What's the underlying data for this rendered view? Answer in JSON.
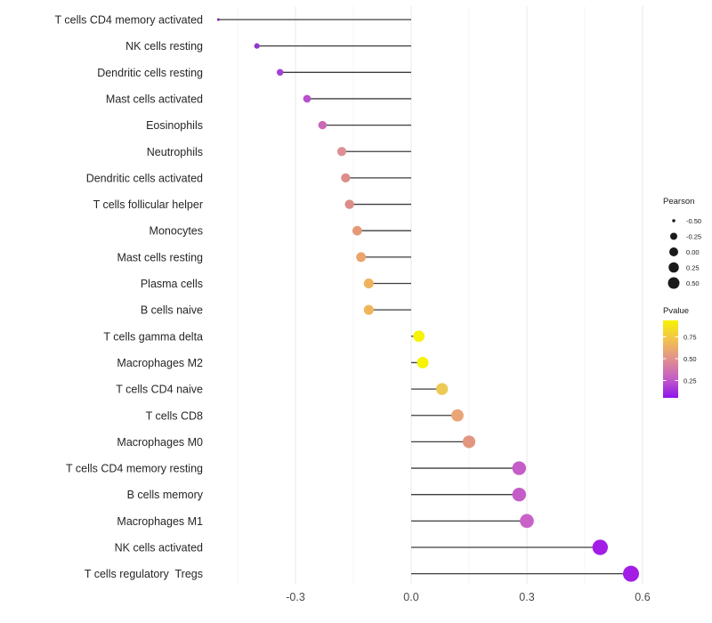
{
  "chart_data": {
    "type": "lollipop",
    "title": "",
    "xlabel": "",
    "ylabel": "",
    "xlim": [
      -0.55,
      0.65
    ],
    "x_ticks": [
      {
        "value": -0.3,
        "label": "-0.3"
      },
      {
        "value": 0.0,
        "label": "0.0"
      },
      {
        "value": 0.3,
        "label": "0.3"
      },
      {
        "value": 0.6,
        "label": "0.6"
      }
    ],
    "x_minor_ticks": [
      -0.45,
      -0.15,
      0.15,
      0.45
    ],
    "grid": "major-and-minor-vertical",
    "legend_position": "right",
    "rows": [
      {
        "label": "T cells CD4 memory activated",
        "pearson": -0.5,
        "dot_color": "#7b24ae"
      },
      {
        "label": "NK cells resting",
        "pearson": -0.4,
        "dot_color": "#9138ce"
      },
      {
        "label": "Dendritic cells resting",
        "pearson": -0.34,
        "dot_color": "#a442d2"
      },
      {
        "label": "Mast cells activated",
        "pearson": -0.27,
        "dot_color": "#b751ca"
      },
      {
        "label": "Eosinophils",
        "pearson": -0.23,
        "dot_color": "#cb69b4"
      },
      {
        "label": "Neutrophils",
        "pearson": -0.18,
        "dot_color": "#de8f94"
      },
      {
        "label": "Dendritic cells activated",
        "pearson": -0.17,
        "dot_color": "#dd8d8b"
      },
      {
        "label": "T cells follicular helper",
        "pearson": -0.16,
        "dot_color": "#de8c89"
      },
      {
        "label": "Monocytes",
        "pearson": -0.14,
        "dot_color": "#e59a77"
      },
      {
        "label": "Mast cells resting",
        "pearson": -0.13,
        "dot_color": "#eba46c"
      },
      {
        "label": "Plasma cells",
        "pearson": -0.11,
        "dot_color": "#f0b35d"
      },
      {
        "label": "B cells naive",
        "pearson": -0.11,
        "dot_color": "#f0b45b"
      },
      {
        "label": "T cells gamma delta",
        "pearson": 0.02,
        "dot_color": "#f6f303"
      },
      {
        "label": "Macrophages M2",
        "pearson": 0.03,
        "dot_color": "#f6f303"
      },
      {
        "label": "T cells CD4 naive",
        "pearson": 0.08,
        "dot_color": "#ecca55"
      },
      {
        "label": "T cells CD8",
        "pearson": 0.12,
        "dot_color": "#eaa576"
      },
      {
        "label": "Macrophages M0",
        "pearson": 0.15,
        "dot_color": "#e2967f"
      },
      {
        "label": "T cells CD4 memory resting",
        "pearson": 0.28,
        "dot_color": "#c45dc7"
      },
      {
        "label": "B cells memory",
        "pearson": 0.28,
        "dot_color": "#c45dc7"
      },
      {
        "label": "Macrophages M1",
        "pearson": 0.3,
        "dot_color": "#c961c9"
      },
      {
        "label": "NK cells activated",
        "pearson": 0.49,
        "dot_color": "#a21ee6"
      },
      {
        "label": "T cells regulatory  Tregs",
        "pearson": 0.57,
        "dot_color": "#a21ee6"
      }
    ],
    "size_legend": {
      "title": "Pearson",
      "entries": [
        {
          "label": "-0.50",
          "diameter": 3.5
        },
        {
          "label": "-0.25",
          "diameter": 8
        },
        {
          "label": "0.00",
          "diameter": 10
        },
        {
          "label": "0.25",
          "diameter": 11.5
        },
        {
          "label": "0.50",
          "diameter": 13
        }
      ]
    },
    "color_legend": {
      "title": "Pvalue",
      "tick_labels": [
        "0.75",
        "0.50",
        "0.25"
      ],
      "gradient_top_to_bottom": [
        "#f8f202",
        "#f2c24e",
        "#e2908f",
        "#c45ec4",
        "#9013ec"
      ]
    },
    "colors": {
      "stem": "#3d3d3d",
      "grid_major": "#e8e8e8",
      "grid_minor": "#f4f4f4",
      "axis_text": "#4a4a4a",
      "y_label_text": "#262626",
      "legend_text": "#1a1a1a",
      "legend_dot": "#1a1a1a",
      "background": "#ffffff"
    }
  }
}
